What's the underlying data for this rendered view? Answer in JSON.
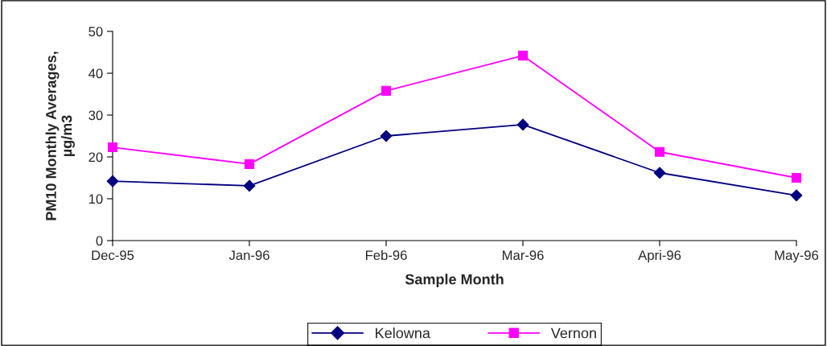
{
  "chart_data": {
    "type": "line",
    "xlabel": "Sample Month",
    "ylabel": "PM10 Monthly Averages,\nµg/m3",
    "categories": [
      "Dec-95",
      "Jan-96",
      "Feb-96",
      "Mar-96",
      "Apri-96",
      "May-96"
    ],
    "series": [
      {
        "name": "Kelowna",
        "color": "#000080",
        "marker": "diamond",
        "values": [
          14.2,
          13.1,
          25,
          27.7,
          16.2,
          10.8
        ]
      },
      {
        "name": "Vernon",
        "color": "#ff00ff",
        "marker": "square",
        "values": [
          22.3,
          18.3,
          35.8,
          44.2,
          21.2,
          15
        ]
      }
    ],
    "ylim": [
      0,
      50
    ],
    "yticks": [
      0,
      10,
      20,
      30,
      40,
      50
    ],
    "grid": false,
    "legend": "bottom",
    "line_style": "solid"
  }
}
